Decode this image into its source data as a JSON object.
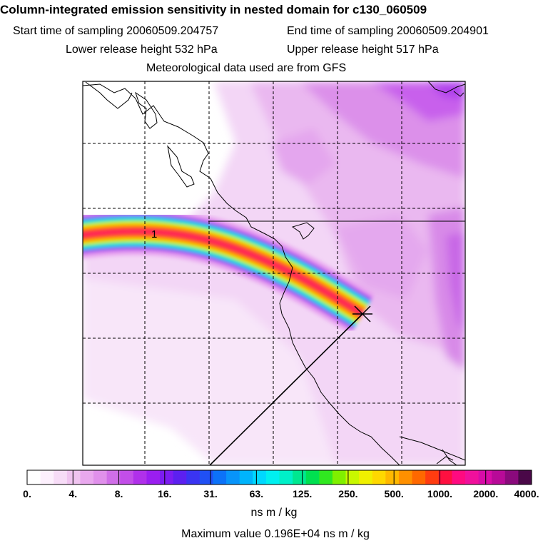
{
  "header": {
    "title": "Column-integrated emission sensitivity in nested domain for c130_060509",
    "start_time": "Start time of sampling 20060509.204757",
    "end_time": "End time of sampling 20060509.204901",
    "lower_height": "Lower release height  532 hPa",
    "upper_height": "Upper release height  517 hPa",
    "met_data": "Meteorological data used are from GFS"
  },
  "chart_data": {
    "type": "heatmap",
    "title": "Column-integrated emission sensitivity in nested domain for c130_060509",
    "colorbar": {
      "ticks": [
        "0.",
        "4.",
        "8.",
        "16.",
        "31.",
        "63.",
        "125.",
        "250.",
        "500.",
        "1000.",
        "2000.",
        "4000."
      ],
      "units": "ns m / kg",
      "colors": [
        "#ffffff",
        "#fdf0fd",
        "#f7dcf7",
        "#f0c4f0",
        "#e9a8ee",
        "#e090eb",
        "#d06ee8",
        "#c24ee8",
        "#b030ea",
        "#9a1ef0",
        "#7c1cf2",
        "#5c20f0",
        "#3a34f2",
        "#2050f4",
        "#0c72f8",
        "#0894fa",
        "#00b4fc",
        "#00d8ff",
        "#00f0f0",
        "#00f0c8",
        "#00e890",
        "#00e050",
        "#30e820",
        "#80f000",
        "#c8f800",
        "#f0f000",
        "#ffd800",
        "#ffb800",
        "#ff9000",
        "#ff6800",
        "#ff3c10",
        "#ff1040",
        "#ff0a80",
        "#f0109c",
        "#d80ca8",
        "#b80a98",
        "#8a0a7c",
        "#4a0848"
      ]
    },
    "maximum_value": "Maximum value  0.196E+04 ns m / kg",
    "plume_label": "1",
    "grid": true
  }
}
